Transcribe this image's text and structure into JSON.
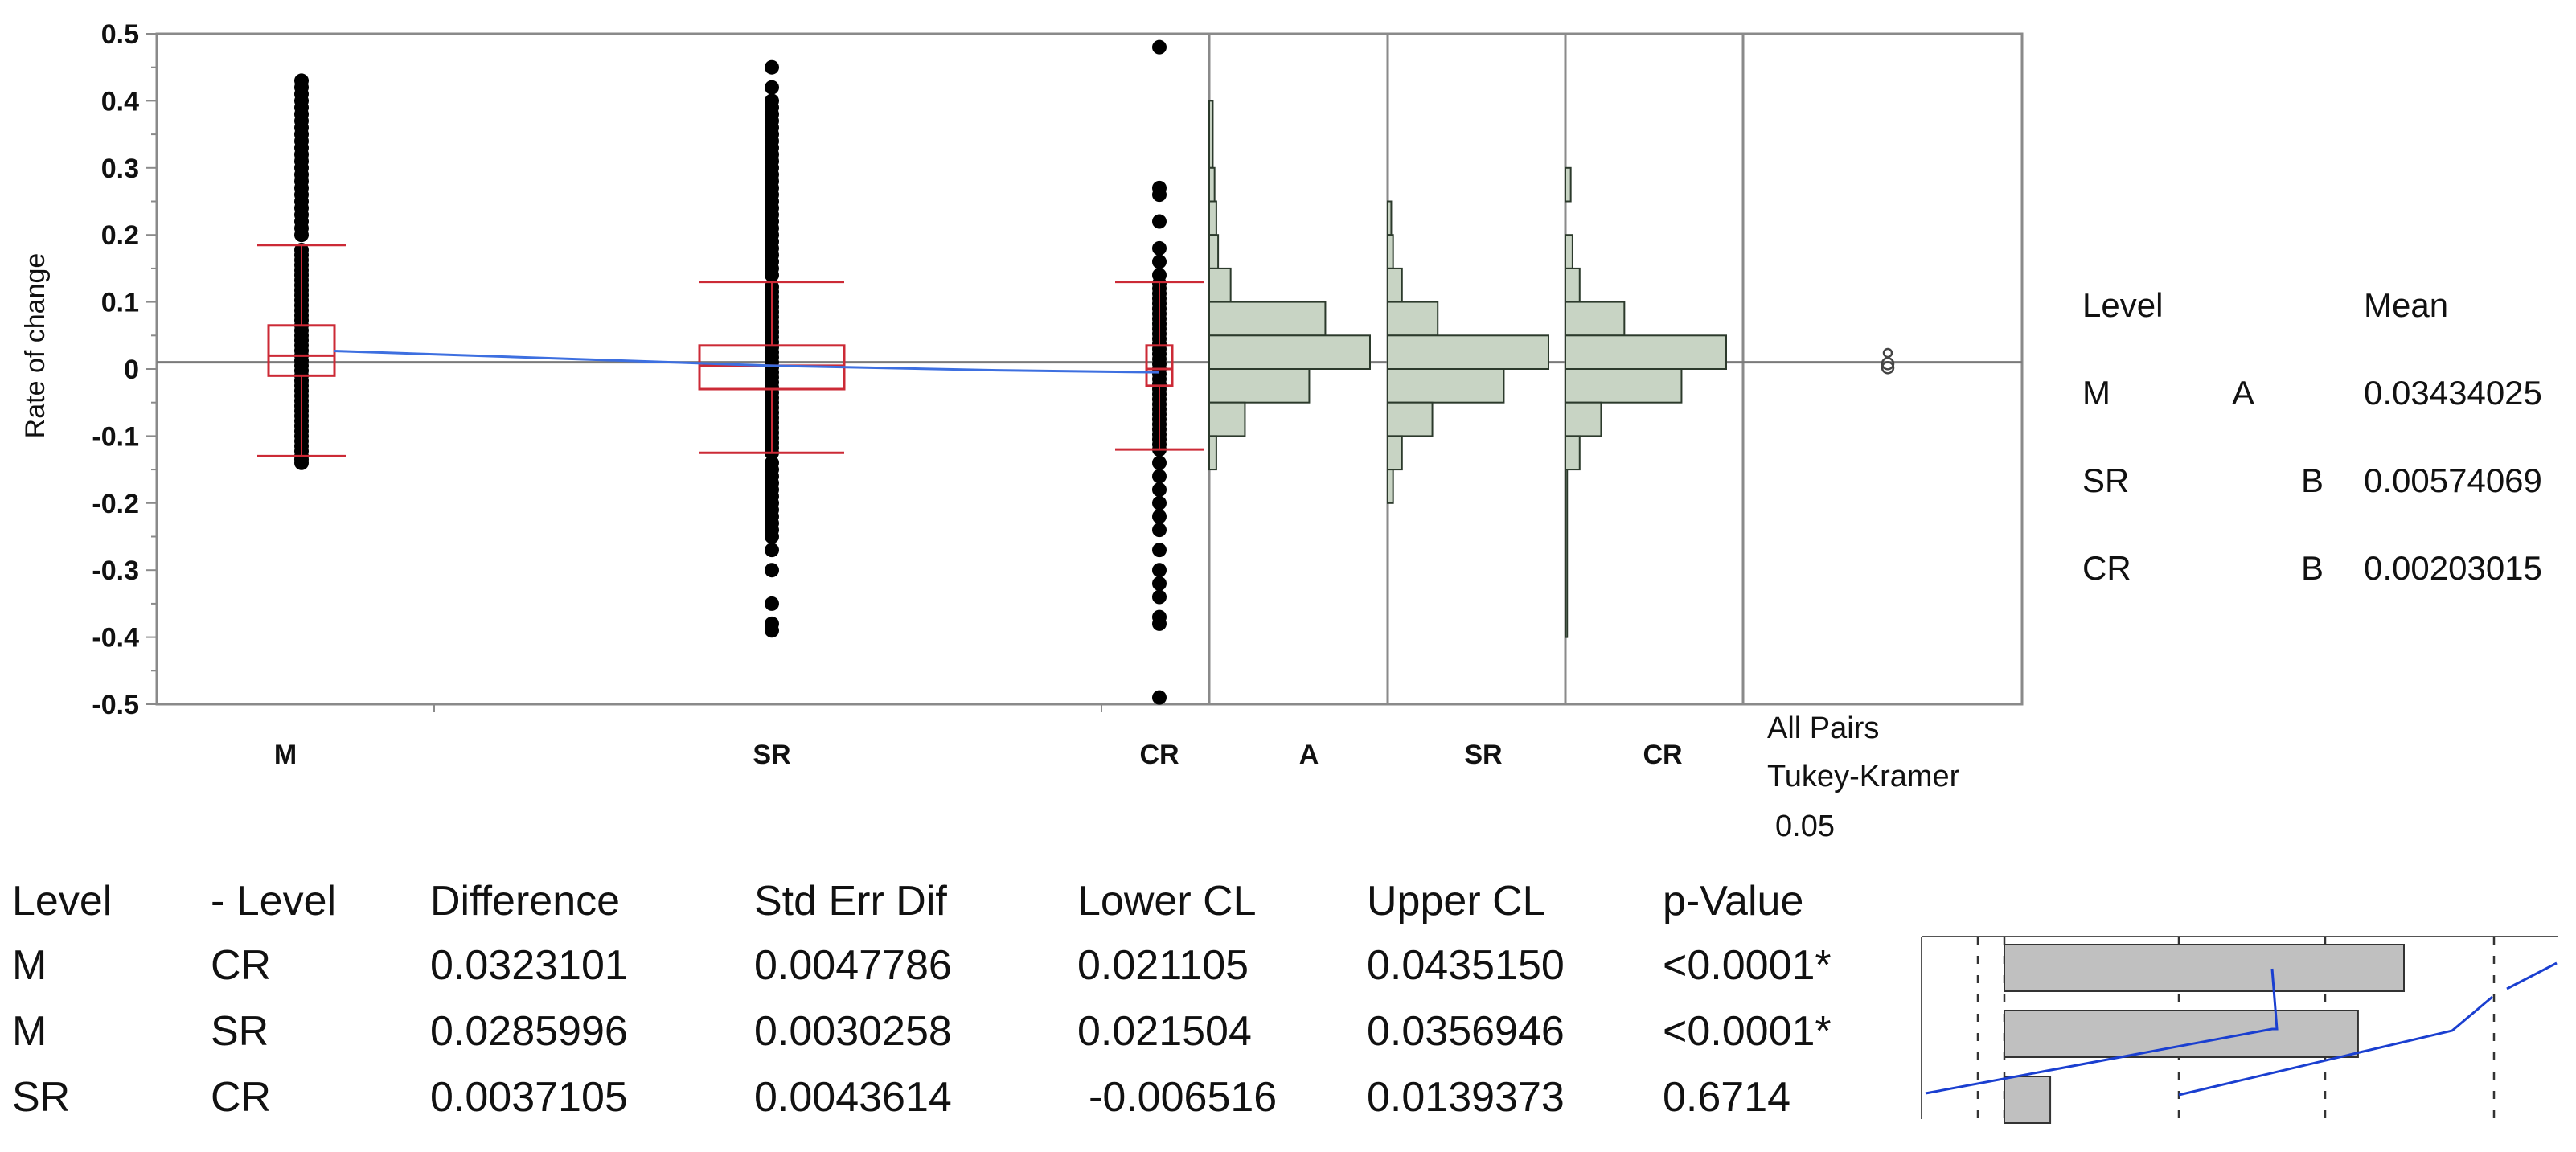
{
  "chart_data": [
    {
      "type": "scatter",
      "ylabel": "Rate of change",
      "ylim": [
        -0.5,
        0.5
      ],
      "yticks": [
        "0.5",
        "0.4",
        "0.3",
        "0.2",
        "0.1",
        "0",
        "-0.1",
        "-0.2",
        "-0.3",
        "-0.4",
        "-0.5"
      ],
      "categories": [
        "M",
        "SR",
        "CR"
      ],
      "grand_mean": 0.01,
      "means": [
        0.03434025,
        0.00574069,
        0.00203015
      ],
      "boxes": [
        {
          "name": "M",
          "q1": -0.01,
          "median": 0.02,
          "q3": 0.065,
          "whisker_low": -0.13,
          "whisker_high": 0.185
        },
        {
          "name": "SR",
          "q1": -0.03,
          "median": 0.005,
          "q3": 0.035,
          "whisker_low": -0.125,
          "whisker_high": 0.13
        },
        {
          "name": "CR",
          "q1": -0.025,
          "median": 0.0,
          "q3": 0.035,
          "whisker_low": -0.12,
          "whisker_high": 0.13
        }
      ],
      "outliers": [
        {
          "name": "M",
          "values": [
            0.43,
            0.42,
            0.41,
            0.4,
            0.39,
            0.38,
            0.37,
            0.36,
            0.35,
            0.34,
            0.33,
            0.32,
            0.31,
            0.3,
            0.29,
            0.28,
            0.27,
            0.26,
            0.25,
            0.24,
            0.23,
            0.22,
            0.21,
            0.2,
            -0.14,
            -0.135
          ]
        },
        {
          "name": "SR",
          "values": [
            0.45,
            0.42,
            0.4,
            0.39,
            0.38,
            0.37,
            0.36,
            0.35,
            0.34,
            0.33,
            0.32,
            0.31,
            0.3,
            0.29,
            0.28,
            0.27,
            0.26,
            0.25,
            0.24,
            0.23,
            0.22,
            0.21,
            0.2,
            0.19,
            0.18,
            0.17,
            0.16,
            0.15,
            0.14,
            -0.14,
            -0.15,
            -0.16,
            -0.17,
            -0.18,
            -0.19,
            -0.2,
            -0.21,
            -0.22,
            -0.23,
            -0.24,
            -0.25,
            -0.27,
            -0.3,
            -0.35,
            -0.38,
            -0.39
          ]
        },
        {
          "name": "CR",
          "values": [
            0.48,
            0.27,
            0.26,
            0.22,
            0.18,
            0.16,
            0.14,
            -0.14,
            -0.16,
            -0.18,
            -0.2,
            -0.22,
            -0.24,
            -0.27,
            -0.3,
            -0.32,
            -0.34,
            -0.37,
            -0.38,
            -0.49
          ]
        }
      ]
    },
    {
      "type": "bar",
      "orientation": "horizontal",
      "categories": [
        "A",
        "SR",
        "CR"
      ],
      "bins": [
        0.4,
        0.3,
        0.2,
        0.1,
        0.0,
        -0.1,
        -0.2,
        -0.3,
        -0.4
      ],
      "series": [
        {
          "name": "A",
          "values": [
            {
              "y0": 0.3,
              "y1": 0.4,
              "c": 2
            },
            {
              "y0": 0.25,
              "y1": 0.3,
              "c": 3
            },
            {
              "y0": 0.2,
              "y1": 0.25,
              "c": 4
            },
            {
              "y0": 0.15,
              "y1": 0.2,
              "c": 5
            },
            {
              "y0": 0.1,
              "y1": 0.15,
              "c": 12
            },
            {
              "y0": 0.05,
              "y1": 0.1,
              "c": 65
            },
            {
              "y0": 0.0,
              "y1": 0.05,
              "c": 90
            },
            {
              "y0": -0.05,
              "y1": 0.0,
              "c": 56
            },
            {
              "y0": -0.1,
              "y1": -0.05,
              "c": 20
            },
            {
              "y0": -0.15,
              "y1": -0.1,
              "c": 4
            }
          ]
        },
        {
          "name": "SR",
          "values": [
            {
              "y0": 0.2,
              "y1": 0.25,
              "c": 2
            },
            {
              "y0": 0.15,
              "y1": 0.2,
              "c": 3
            },
            {
              "y0": 0.1,
              "y1": 0.15,
              "c": 8
            },
            {
              "y0": 0.05,
              "y1": 0.1,
              "c": 28
            },
            {
              "y0": 0.0,
              "y1": 0.05,
              "c": 90
            },
            {
              "y0": -0.05,
              "y1": 0.0,
              "c": 65
            },
            {
              "y0": -0.1,
              "y1": -0.05,
              "c": 25
            },
            {
              "y0": -0.15,
              "y1": -0.1,
              "c": 8
            },
            {
              "y0": -0.2,
              "y1": -0.15,
              "c": 3
            }
          ]
        },
        {
          "name": "CR",
          "values": [
            {
              "y0": 0.25,
              "y1": 0.3,
              "c": 3
            },
            {
              "y0": 0.15,
              "y1": 0.2,
              "c": 4
            },
            {
              "y0": 0.1,
              "y1": 0.15,
              "c": 8
            },
            {
              "y0": 0.05,
              "y1": 0.1,
              "c": 33
            },
            {
              "y0": 0.0,
              "y1": 0.05,
              "c": 90
            },
            {
              "y0": -0.05,
              "y1": 0.0,
              "c": 65
            },
            {
              "y0": -0.1,
              "y1": -0.05,
              "c": 20
            },
            {
              "y0": -0.15,
              "y1": -0.1,
              "c": 8
            },
            {
              "y0": -0.4,
              "y1": -0.15,
              "c": 1
            }
          ]
        }
      ]
    },
    {
      "type": "table",
      "title": "All Pairs Tukey-Kramer 0.05",
      "levels_table": {
        "headers": [
          "Level",
          "",
          "",
          "Mean"
        ],
        "rows": [
          [
            "M",
            "A",
            "",
            "0.03434025"
          ],
          [
            "SR",
            "",
            "B",
            "0.00574069"
          ],
          [
            "CR",
            "",
            "B",
            "0.00203015"
          ]
        ]
      },
      "comparisons": {
        "headers": [
          "Level",
          "- Level",
          "Difference",
          "Std Err Dif",
          "Lower CL",
          "Upper CL",
          "p-Value"
        ],
        "rows": [
          [
            "M",
            "CR",
            "0.0323101",
            "0.0047786",
            "0.021105",
            "0.0435150",
            "<0.0001*"
          ],
          [
            "M",
            "SR",
            "0.0285996",
            "0.0030258",
            "0.021504",
            "0.0356946",
            "<0.0001*"
          ],
          [
            "SR",
            "CR",
            "0.0037105",
            "0.0043614",
            "-0.006516",
            "0.0139373",
            "0.6714"
          ]
        ],
        "difference_values": [
          0.0323101,
          0.0285996,
          0.0037105
        ],
        "lower_cl": [
          0.021105,
          0.021504,
          -0.006516
        ],
        "upper_cl": [
          0.043515,
          0.0356946,
          0.0139373
        ]
      }
    }
  ],
  "labels": {
    "all_pairs_line1": "All Pairs",
    "all_pairs_line2": "Tukey-Kramer",
    "alpha": "0.05"
  },
  "colors": {
    "box": "#cc2a36",
    "mean_line": "#3d6fe0",
    "hist_fill": "#c8d4c4",
    "hist_stroke": "#2c3a2c",
    "bar_fill": "#c0c0c0",
    "ci_line": "#1a3fd0"
  }
}
